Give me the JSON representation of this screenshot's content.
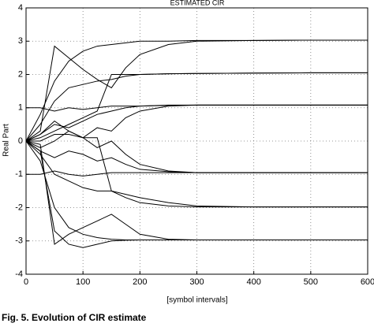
{
  "chart_data": {
    "type": "line",
    "title": "ESTIMATED CIR",
    "x_label": "[symbol intervals]",
    "y_label": "Real Part",
    "caption": "Fig. 5. Evolution of CIR estimate",
    "x": [
      0,
      25,
      50,
      75,
      100,
      125,
      150,
      175,
      200,
      250,
      300,
      400,
      500,
      600
    ],
    "series": [
      {
        "color": "#000000",
        "values": [
          0,
          0.8,
          1.8,
          2.4,
          2.7,
          2.85,
          2.9,
          2.95,
          3.0,
          3.0,
          3.02,
          3.02,
          3.03,
          3.03
        ]
      },
      {
        "color": "#000000",
        "values": [
          0,
          0.3,
          2.85,
          2.5,
          2.15,
          1.85,
          1.6,
          2.2,
          2.6,
          2.9,
          3.0,
          3.02,
          3.03,
          3.03
        ]
      },
      {
        "color": "#000000",
        "values": [
          0,
          0.5,
          1.2,
          1.6,
          1.7,
          1.8,
          1.85,
          1.95,
          2.0,
          2.02,
          2.03,
          2.04,
          2.05,
          2.05
        ]
      },
      {
        "color": "#000000",
        "values": [
          0,
          0.1,
          0.3,
          0.5,
          0.7,
          0.9,
          2.0,
          2.0,
          2.0,
          2.02,
          2.03,
          2.04,
          2.05,
          2.05
        ]
      },
      {
        "color": "#000000",
        "values": [
          1,
          1,
          0.9,
          1.0,
          0.95,
          1.0,
          1.05,
          1.05,
          1.05,
          1.08,
          1.08,
          1.08,
          1.08,
          1.08
        ]
      },
      {
        "color": "#000000",
        "values": [
          0,
          0.2,
          0.5,
          0.4,
          0.6,
          0.8,
          0.9,
          1.0,
          1.05,
          1.07,
          1.08,
          1.08,
          1.08,
          1.08
        ]
      },
      {
        "color": "#000000",
        "values": [
          0,
          -0.2,
          0,
          0.3,
          0.1,
          0.4,
          0.3,
          0.7,
          0.9,
          1.05,
          1.08,
          1.08,
          1.08,
          1.08
        ]
      },
      {
        "color": "#000000",
        "values": [
          -1,
          -1,
          -0.9,
          -1,
          -1.05,
          -1,
          -0.95,
          -0.95,
          -0.95,
          -0.95,
          -0.95,
          -0.95,
          -0.95,
          -0.95
        ]
      },
      {
        "color": "#000000",
        "values": [
          0,
          -0.3,
          -0.5,
          -0.3,
          -0.4,
          -0.6,
          -0.5,
          -0.7,
          -0.85,
          -0.92,
          -0.95,
          -0.95,
          -0.95,
          -0.95
        ]
      },
      {
        "color": "#000000",
        "values": [
          0,
          0.2,
          0.6,
          0.3,
          0.1,
          -0.2,
          0,
          -0.4,
          -0.7,
          -0.9,
          -0.95,
          -0.95,
          -0.95,
          -0.95
        ]
      },
      {
        "color": "#000000",
        "values": [
          0,
          -0.4,
          -1.0,
          -1.2,
          -1.4,
          -1.5,
          -1.5,
          -1.7,
          -1.85,
          -1.95,
          -1.98,
          -1.98,
          -1.98,
          -1.98
        ]
      },
      {
        "color": "#000000",
        "values": [
          0,
          0,
          0.2,
          0.2,
          0.1,
          0.1,
          -1.5,
          -1.6,
          -1.7,
          -1.85,
          -1.95,
          -1.98,
          -1.98,
          -1.98
        ]
      },
      {
        "color": "#000000",
        "values": [
          0,
          -0.6,
          -2.0,
          -2.6,
          -2.8,
          -2.9,
          -2.95,
          -2.97,
          -2.97,
          -2.97,
          -2.97,
          -2.97,
          -2.97,
          -2.97
        ]
      },
      {
        "color": "#000000",
        "values": [
          0,
          -0.1,
          -3.1,
          -2.8,
          -2.6,
          -2.4,
          -2.2,
          -2.5,
          -2.8,
          -2.95,
          -2.97,
          -2.97,
          -2.97,
          -2.97
        ]
      },
      {
        "color": "#000000",
        "values": [
          0,
          -0.3,
          -2.7,
          -3.1,
          -3.2,
          -3.1,
          -3.0,
          -2.98,
          -2.97,
          -2.97,
          -2.97,
          -2.97,
          -2.97,
          -2.97
        ]
      }
    ],
    "xlim": [
      0,
      600
    ],
    "xticks": [
      0,
      100,
      200,
      300,
      400,
      500,
      600
    ],
    "ylim": [
      -4,
      4
    ],
    "yticks": [
      -4,
      -3,
      -2,
      -1,
      0,
      1,
      2,
      3,
      4
    ],
    "grid": true
  }
}
